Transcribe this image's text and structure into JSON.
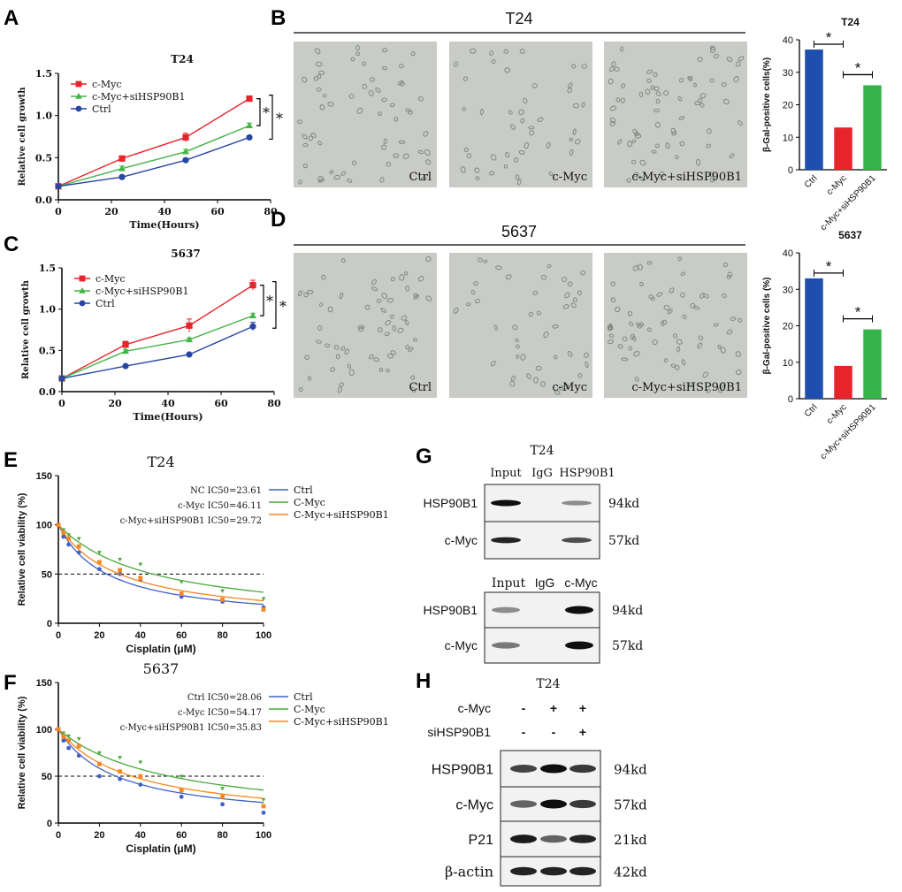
{
  "panel_letters": [
    "A",
    "B",
    "C",
    "D",
    "E",
    "F",
    "G",
    "H"
  ],
  "colors": {
    "red": "#e8232a",
    "green": "#43b548",
    "blue": "#2747a3",
    "bar_blue": "#1f4fae",
    "bar_red": "#e8232a",
    "bar_green": "#35b449",
    "curve_ctrl": "#3f60c8",
    "curve_cmyc": "#4aaa3c",
    "curve_si": "#f5881f",
    "micro_bg": "#c9cbc6",
    "micro_cell": "#7f8a7c",
    "blot_bg": "#f2f2f2",
    "band": "#151515"
  },
  "chart_data": [
    {
      "id": "A",
      "type": "line",
      "title": "T24",
      "xlabel": "Time(Hours)",
      "ylabel": "Relative cell growth",
      "xlim": [
        0,
        80
      ],
      "ylim": [
        0,
        1.5
      ],
      "xticks": [
        0,
        20,
        40,
        60,
        80
      ],
      "yticks": [
        0.0,
        0.5,
        1.0,
        1.5
      ],
      "x": [
        0,
        24,
        48,
        72
      ],
      "legend_position": "top-left",
      "series": [
        {
          "name": "c-Myc",
          "color": "#e8232a",
          "marker": "square",
          "values": [
            0.16,
            0.49,
            0.74,
            1.2
          ],
          "err": [
            0.01,
            0.02,
            0.05,
            0.03
          ]
        },
        {
          "name": "c-Myc+siHSP90B1",
          "color": "#43b548",
          "marker": "triangle",
          "values": [
            0.16,
            0.37,
            0.57,
            0.88
          ],
          "err": [
            0.01,
            0.03,
            0.03,
            0.03
          ]
        },
        {
          "name": "Ctrl",
          "color": "#2747a3",
          "marker": "circle",
          "values": [
            0.16,
            0.27,
            0.47,
            0.74
          ],
          "err": [
            0.01,
            0.02,
            0.02,
            0.02
          ]
        }
      ],
      "significance": [
        "*",
        "*"
      ]
    },
    {
      "id": "C",
      "type": "line",
      "title": "5637",
      "xlabel": "Time(Hours)",
      "ylabel": "Relative cell growth",
      "xlim": [
        0,
        80
      ],
      "ylim": [
        0,
        1.5
      ],
      "xticks": [
        0,
        20,
        40,
        60,
        80
      ],
      "yticks": [
        0.0,
        0.5,
        1.0,
        1.5
      ],
      "x": [
        0,
        24,
        48,
        72
      ],
      "legend_position": "top-left",
      "series": [
        {
          "name": "c-Myc",
          "color": "#e8232a",
          "marker": "square",
          "values": [
            0.16,
            0.57,
            0.8,
            1.29
          ],
          "err": [
            0.01,
            0.04,
            0.08,
            0.06
          ]
        },
        {
          "name": "c-Myc+siHSP90B1",
          "color": "#43b548",
          "marker": "triangle",
          "values": [
            0.16,
            0.49,
            0.63,
            0.92
          ],
          "err": [
            0.01,
            0.02,
            0.02,
            0.03
          ]
        },
        {
          "name": "Ctrl",
          "color": "#2747a3",
          "marker": "circle",
          "values": [
            0.16,
            0.31,
            0.45,
            0.79
          ],
          "err": [
            0.01,
            0.01,
            0.01,
            0.05
          ]
        }
      ],
      "significance": [
        "*",
        "*"
      ]
    },
    {
      "id": "B-bar",
      "type": "bar",
      "title": "T24",
      "ylabel": "β-Gal-positive cells(%)",
      "categories": [
        "Ctrl",
        "c-Myc",
        "c-Myc+siHSP90B1"
      ],
      "values": [
        37,
        13,
        26
      ],
      "colors": [
        "#1f4fae",
        "#e8232a",
        "#35b449"
      ],
      "ylim": [
        0,
        40
      ],
      "yticks": [
        0,
        10,
        20,
        30,
        40
      ],
      "significance": [
        "*",
        "*"
      ]
    },
    {
      "id": "D-bar",
      "type": "bar",
      "title": "5637",
      "ylabel": "β-Gal-positive cells (%)",
      "categories": [
        "Ctrl",
        "c-Myc",
        "c-Myc+siHSP90B1"
      ],
      "values": [
        33,
        9,
        19
      ],
      "colors": [
        "#1f4fae",
        "#e8232a",
        "#35b449"
      ],
      "ylim": [
        0,
        40
      ],
      "yticks": [
        0,
        10,
        20,
        30,
        40
      ],
      "significance": [
        "*",
        "*"
      ]
    },
    {
      "id": "E",
      "type": "scatter",
      "title": "T24",
      "xlabel": "Cisplatin (μM)",
      "ylabel": "Relative cell viability (%)",
      "xlim": [
        0,
        100
      ],
      "ylim": [
        0,
        150
      ],
      "xticks": [
        0,
        20,
        40,
        60,
        80,
        100
      ],
      "yticks": [
        0,
        50,
        100,
        150
      ],
      "reference_line": 50,
      "x": [
        0,
        2.5,
        5,
        10,
        20,
        30,
        40,
        60,
        80,
        100
      ],
      "series": [
        {
          "name": "Ctrl",
          "color": "#3f60c8",
          "values": [
            100,
            88,
            80,
            72,
            55,
            50,
            44,
            27,
            22,
            16
          ],
          "ic50": 23.61
        },
        {
          "name": "C-Myc",
          "color": "#4aaa3c",
          "values": [
            100,
            95,
            90,
            86,
            72,
            65,
            60,
            42,
            33,
            25
          ],
          "ic50": 46.11
        },
        {
          "name": "C-Myc+siHSP90B1",
          "color": "#f5881f",
          "values": [
            100,
            92,
            86,
            78,
            62,
            54,
            46,
            30,
            24,
            14
          ],
          "ic50": 29.72
        }
      ],
      "annotations": [
        "NC IC50=23.61",
        "c-Myc IC50=46.11",
        "c-Myc+siHSP90B1 IC50=29.72"
      ]
    },
    {
      "id": "F",
      "type": "scatter",
      "title": "5637",
      "xlabel": "Cisplatin (μM)",
      "ylabel": "Relative cell viability (%)",
      "xlim": [
        0,
        100
      ],
      "ylim": [
        0,
        150
      ],
      "xticks": [
        0,
        20,
        40,
        60,
        80,
        100
      ],
      "yticks": [
        0,
        50,
        100,
        150
      ],
      "reference_line": 50,
      "x": [
        0,
        2.5,
        5,
        10,
        20,
        30,
        40,
        60,
        80,
        100
      ],
      "series": [
        {
          "name": "Ctrl",
          "color": "#3f60c8",
          "values": [
            100,
            88,
            80,
            72,
            50,
            47,
            41,
            28,
            20,
            11
          ],
          "ic50": 28.06
        },
        {
          "name": "C-Myc",
          "color": "#4aaa3c",
          "values": [
            100,
            96,
            93,
            90,
            75,
            70,
            65,
            50,
            37,
            25
          ],
          "ic50": 54.17
        },
        {
          "name": "C-Myc+siHSP90B1",
          "color": "#f5881f",
          "values": [
            100,
            92,
            88,
            82,
            63,
            55,
            50,
            35,
            28,
            18
          ],
          "ic50": 35.83
        }
      ],
      "annotations": [
        "Ctrl IC50=28.06",
        "c-Myc IC50=54.17",
        "c-Myc+siHSP90B1 IC50=35.83"
      ]
    }
  ],
  "microscopy": {
    "B": {
      "title": "T24",
      "labels": [
        "Ctrl",
        "c-Myc",
        "c-Myc+siHSP90B1"
      ]
    },
    "D": {
      "title": "5637",
      "labels": [
        "Ctrl",
        "c-Myc",
        "c-Myc+siHSP90B1"
      ]
    }
  },
  "blot_G": {
    "title": "T24",
    "top": {
      "lanes": [
        "Input",
        "IgG",
        "HSP90B1"
      ],
      "rows": [
        {
          "protein": "HSP90B1",
          "size": "94kd",
          "intensity": [
            1.0,
            0,
            0.4
          ]
        },
        {
          "protein": "c-Myc",
          "size": "57kd",
          "intensity": [
            0.9,
            0,
            0.7
          ]
        }
      ]
    },
    "bottom": {
      "lanes": [
        "Input",
        "IgG",
        "c-Myc"
      ],
      "rows": [
        {
          "protein": "HSP90B1",
          "size": "94kd",
          "intensity": [
            0.4,
            0,
            1.0
          ]
        },
        {
          "protein": "c-Myc",
          "size": "57kd",
          "intensity": [
            0.5,
            0,
            1.0
          ]
        }
      ]
    }
  },
  "blot_H": {
    "title": "T24",
    "conditions": [
      {
        "name": "c-Myc",
        "values": [
          "-",
          "+",
          "+"
        ]
      },
      {
        "name": "siHSP90B1",
        "values": [
          "-",
          "-",
          "+"
        ]
      }
    ],
    "rows": [
      {
        "protein": "HSP90B1",
        "size": "94kd",
        "intensity": [
          0.75,
          1.0,
          0.8
        ]
      },
      {
        "protein": "c-Myc",
        "size": "57kd",
        "intensity": [
          0.6,
          1.0,
          0.8
        ]
      },
      {
        "protein": "P21",
        "size": "21kd",
        "intensity": [
          0.95,
          0.6,
          0.9
        ]
      },
      {
        "protein": "β-actin",
        "size": "42kd",
        "intensity": [
          0.9,
          0.9,
          0.9
        ]
      }
    ]
  }
}
